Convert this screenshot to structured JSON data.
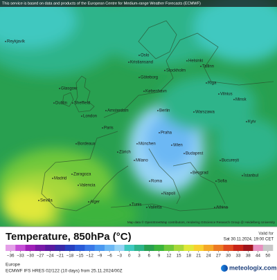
{
  "header": {
    "notice": "This service is based on data and products of the European Centre for Medium-range Weather Forecasts (ECMWF)"
  },
  "map": {
    "cities": [
      "Reykjavík",
      "Glasgow",
      "Dublin",
      "Sheffield",
      "London",
      "Amsterdam",
      "Paris",
      "Bordeaux",
      "Zaragoza",
      "Madrid",
      "Valencia",
      "Sevilla",
      "Alger",
      "Tunis",
      "Valletta",
      "Roma",
      "Napoli",
      "Milano",
      "Zürich",
      "München",
      "Berlin",
      "Praha",
      "Wien",
      "Budapest",
      "Warszawa",
      "København",
      "Göteborg",
      "Oslo",
      "Stockholm",
      "Helsinki",
      "Tallinn",
      "Riga",
      "Vilnius",
      "Minsk",
      "Kyiv",
      "Beograd",
      "București",
      "Sofia",
      "Athina",
      "İstanbul",
      "Kristiansand"
    ],
    "attribution": "Map data © OpenStreetMap contributors, rendering GIScience Research Group @ Heidelberg University"
  },
  "legend": {
    "title": "Temperature, 850hPa (°C)",
    "ticks": [
      {
        "value": -36,
        "label": "−36"
      },
      {
        "value": -33,
        "label": "−33"
      },
      {
        "value": -30,
        "label": "−30"
      },
      {
        "value": -27,
        "label": "−27"
      },
      {
        "value": -24,
        "label": "−24"
      },
      {
        "value": -21,
        "label": "−21"
      },
      {
        "value": -18,
        "label": "−18"
      },
      {
        "value": -15,
        "label": "−15"
      },
      {
        "value": -12,
        "label": "−12"
      },
      {
        "value": -9,
        "label": "−9"
      },
      {
        "value": -6,
        "label": "−6"
      },
      {
        "value": -3,
        "label": "−3"
      },
      0,
      3,
      6,
      9,
      12,
      15,
      18,
      21,
      24,
      27,
      30,
      33,
      38,
      44,
      50
    ],
    "colors": [
      "#e4a0e8",
      "#c64fd6",
      "#a020b8",
      "#7a1aa8",
      "#5a1aa0",
      "#3a2aa8",
      "#2840c0",
      "#2a5ad8",
      "#3a78e8",
      "#4a98f0",
      "#6cb8f4",
      "#98d4f6",
      "#3fc8c0",
      "#2db48a",
      "#28a050",
      "#3cb43c",
      "#70c83a",
      "#a8d83a",
      "#e0e83a",
      "#f8d030",
      "#f4a828",
      "#ec7a24",
      "#e04a20",
      "#c82418",
      "#a0141c",
      "#e890c0",
      "#c8c8c8"
    ]
  },
  "footer": {
    "valid_label": "Valid for",
    "valid_time": "Sat 30.11.2024, 19:00 CET",
    "region": "Europe",
    "model": "ECMWF IFS HRES 02/122 (10 days) from 25.11.2024/00Z",
    "brand": "meteologix.com"
  }
}
